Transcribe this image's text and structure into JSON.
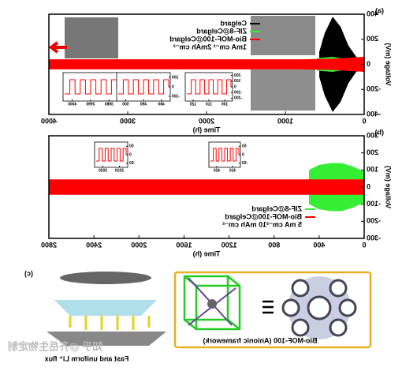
{
  "panels": [
    {
      "label": "(a)",
      "chart_data": {
        "type": "band",
        "xlabel": "Time (h)",
        "ylabel": "Voltage (mV)",
        "xlim": [
          0,
          4000
        ],
        "xticks": [
          0,
          1000,
          2000,
          3000,
          4000
        ],
        "ylim": [
          -400,
          400
        ],
        "yticks": [
          400,
          200,
          0,
          -200,
          -400
        ],
        "series": [
          {
            "name": "Celgard",
            "color": "#000000",
            "x": [
              0,
              100,
              200,
              300,
              400,
              500,
              570
            ],
            "values": [
              40,
              60,
              150,
              300,
              380,
              250,
              100
            ]
          },
          {
            "name": "ZIF-8@Celgard",
            "color": "#33ee33",
            "x": [
              0,
              200,
              400,
              600
            ],
            "values": [
              20,
              40,
              60,
              50
            ]
          },
          {
            "name": "Bio-MOF-100@Celgard",
            "color": "#ff0000",
            "x": [
              0,
              400,
              800,
              4000
            ],
            "values": [
              60,
              45,
              40,
              40
            ]
          }
        ],
        "annotation": "1mA cm⁻² 2mAh cm⁻²",
        "insets": [
          {
            "xticks": [
              3980,
              3990,
              4000
            ],
            "yticks": [
              100,
              0,
              -100
            ]
          },
          {
            "xticks": [
              480,
              490,
              500
            ],
            "yticks": [
              100,
              0,
              -100
            ]
          },
          {
            "xticks": [
              100,
              110,
              120
            ],
            "yticks": [
              200,
              100,
              0,
              -100,
              -200
            ]
          }
        ]
      }
    },
    {
      "label": "(b)",
      "chart_data": {
        "type": "band",
        "xlabel": "Time (h)",
        "ylabel": "Voltage (mV)",
        "xlim": [
          0,
          2800
        ],
        "xticks": [
          0,
          400,
          800,
          1200,
          1600,
          2000,
          2400,
          2800
        ],
        "ylim": [
          -300,
          300
        ],
        "yticks": [
          300,
          200,
          100,
          0,
          -100,
          -200,
          -300
        ],
        "series": [
          {
            "name": "ZIF-8@Celgard",
            "color": "#33ee33",
            "x": [
              0,
              100,
              200,
              300,
              400,
              490
            ],
            "values": [
              90,
              120,
              140,
              140,
              130,
              100
            ]
          },
          {
            "name": "Bio-MOF-100@Celgard",
            "color": "#ff0000",
            "x": [
              0,
              2800
            ],
            "values": [
              45,
              45
            ]
          }
        ],
        "annotation": "5 mA cm⁻²10 mAh cm⁻²",
        "insets": [
          {
            "xticks": [
              2010,
              2020
            ],
            "yticks": [
              50,
              0,
              -50
            ]
          },
          {
            "xticks": [
              410,
              420
            ],
            "yticks": [
              50,
              0,
              -50
            ]
          }
        ]
      }
    }
  ],
  "panel_c": {
    "label": "(c)",
    "framework": "Bio-MOF-100 (Anionic framework)",
    "flux": "Fast and uniform Li⁺ flux"
  },
  "watermark": "知乎 @齐岳生物定制"
}
